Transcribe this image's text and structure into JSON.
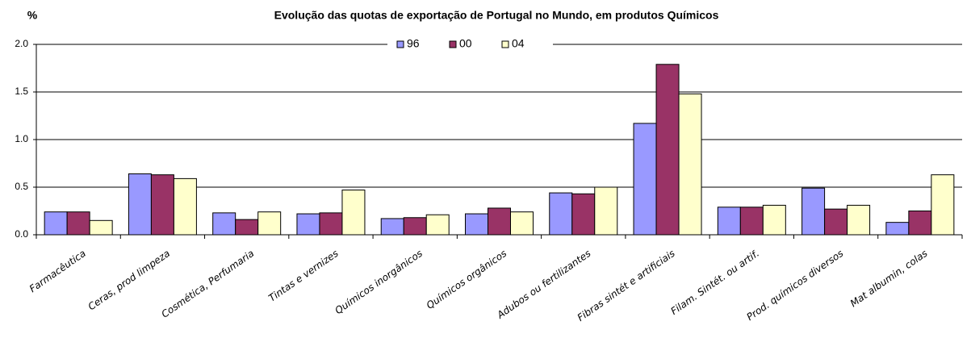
{
  "chart_data": {
    "type": "bar",
    "title": "Evolução das quotas de exportação de Portugal no Mundo, em produtos Químicos",
    "y_label": "%",
    "categories": [
      "Farmacêutica",
      "Ceras, prod limpeza",
      "Cosmética, Perfumaria",
      "Tintas e vernizes",
      "Químicos inorgânicos",
      "Químicos orgânicos",
      "Adubos ou fertilizantes",
      "Fibras sintét e artificiais",
      "Filam. Sintét. ou artif.",
      "Prod. químicos diversos",
      "Mat albumin, colas"
    ],
    "series": [
      {
        "name": "96",
        "color": "#9999ff",
        "values": [
          0.24,
          0.64,
          0.23,
          0.22,
          0.17,
          0.22,
          0.44,
          1.17,
          0.29,
          0.49,
          0.13
        ]
      },
      {
        "name": "00",
        "color": "#993366",
        "values": [
          0.24,
          0.63,
          0.16,
          0.23,
          0.18,
          0.28,
          0.43,
          1.79,
          0.29,
          0.27,
          0.25
        ]
      },
      {
        "name": "04",
        "color": "#ffffcc",
        "values": [
          0.15,
          0.59,
          0.24,
          0.47,
          0.21,
          0.24,
          0.5,
          1.48,
          0.31,
          0.31,
          0.63
        ]
      }
    ],
    "ylim": [
      0,
      2
    ],
    "yticks": [
      {
        "value": 0,
        "label": "0.0"
      },
      0.5,
      {
        "value": 1,
        "label": "1.0"
      },
      1.5,
      {
        "value": 2,
        "label": "2.0"
      }
    ],
    "grid": true,
    "legend": "top"
  }
}
